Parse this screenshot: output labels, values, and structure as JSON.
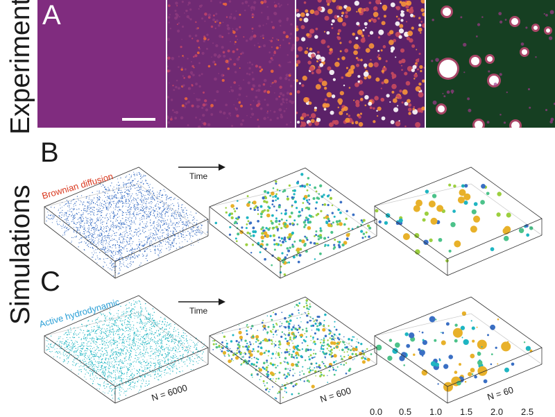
{
  "labels": {
    "experiments": "Experiments",
    "simulations": "Simulations",
    "panel_a": "A",
    "panel_b": "B",
    "panel_c": "C"
  },
  "row_b": {
    "model": "Brownian diffusion",
    "model_color": "#d9381e",
    "time_label": "Time"
  },
  "row_c": {
    "model": "Active hydrodynamic",
    "model_color": "#2a9fd6",
    "time_label": "Time",
    "n_labels": [
      "N = 6000",
      "N = 600",
      "N = 60"
    ]
  },
  "colorbar_ticks": [
    "0.0",
    "0.5",
    "1.0",
    "1.5",
    "2.0",
    "2.5"
  ],
  "colors": {
    "blue": "#3a6fc4",
    "teal": "#1fb5c2",
    "green": "#4cc28a",
    "lime": "#9ccf3f",
    "gold": "#e8b12a",
    "exp_purple": "#7d2a78",
    "exp_green": "#163f22"
  }
}
